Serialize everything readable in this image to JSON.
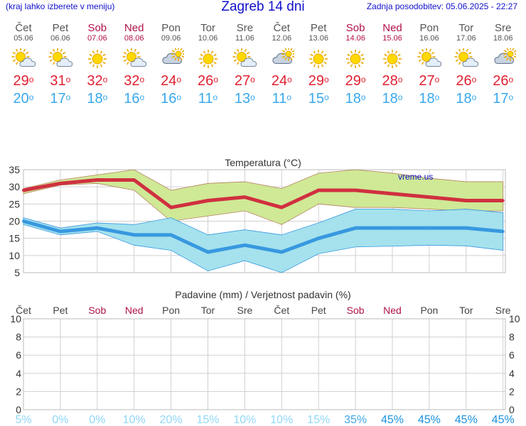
{
  "header": {
    "menu_hint": "(kraj lahko izberete v meniju)",
    "title": "Zagreb 14 dni",
    "updated": "Zadnja posodobitev: 05.06.2025 - 22:27"
  },
  "days": [
    {
      "name": "Čet",
      "date": "05.06",
      "weekend": false,
      "icon": "sun-cloud-icon",
      "tmax": "29",
      "tmin": "20"
    },
    {
      "name": "Pet",
      "date": "06.06",
      "weekend": false,
      "icon": "sun-cloud-icon",
      "tmax": "31",
      "tmin": "17"
    },
    {
      "name": "Sob",
      "date": "07.06",
      "weekend": true,
      "icon": "sun-icon",
      "tmax": "32",
      "tmin": "18"
    },
    {
      "name": "Ned",
      "date": "08.06",
      "weekend": true,
      "icon": "sun-cloud-icon",
      "tmax": "32",
      "tmin": "16"
    },
    {
      "name": "Pon",
      "date": "09.06",
      "weekend": false,
      "icon": "cloud-sun-icon",
      "tmax": "24",
      "tmin": "16"
    },
    {
      "name": "Tor",
      "date": "10.06",
      "weekend": false,
      "icon": "sun-icon",
      "tmax": "26",
      "tmin": "11"
    },
    {
      "name": "Sre",
      "date": "11.06",
      "weekend": false,
      "icon": "sun-cloud-icon",
      "tmax": "27",
      "tmin": "13"
    },
    {
      "name": "Čet",
      "date": "12.06",
      "weekend": false,
      "icon": "cloud-sun-icon",
      "tmax": "24",
      "tmin": "11"
    },
    {
      "name": "Pet",
      "date": "13.06",
      "weekend": false,
      "icon": "sun-icon",
      "tmax": "29",
      "tmin": "15"
    },
    {
      "name": "Sob",
      "date": "14.06",
      "weekend": true,
      "icon": "sun-icon",
      "tmax": "29",
      "tmin": "18"
    },
    {
      "name": "Ned",
      "date": "15.06",
      "weekend": true,
      "icon": "sun-icon",
      "tmax": "28",
      "tmin": "18"
    },
    {
      "name": "Pon",
      "date": "16.06",
      "weekend": false,
      "icon": "sun-cloud-icon",
      "tmax": "27",
      "tmin": "18"
    },
    {
      "name": "Tor",
      "date": "17.06",
      "weekend": false,
      "icon": "sun-cloud-icon",
      "tmax": "26",
      "tmin": "18"
    },
    {
      "name": "Sre",
      "date": "18.06",
      "weekend": false,
      "icon": "cloud-sun-icon",
      "tmax": "26",
      "tmin": "17"
    }
  ],
  "chart_data": [
    {
      "type": "line",
      "title": "Temperatura (°C)",
      "watermark": "vreme.us",
      "x": [
        "Čet",
        "Pet",
        "Sob",
        "Ned",
        "Pon",
        "Tor",
        "Sre",
        "Čet",
        "Pet",
        "Sob",
        "Ned",
        "Pon",
        "Tor",
        "Sre"
      ],
      "ylim": [
        5,
        35
      ],
      "yticks": [
        5,
        10,
        15,
        20,
        25,
        30,
        35
      ],
      "grid": true,
      "series": [
        {
          "role": "max",
          "values": [
            29,
            31,
            32,
            32,
            24,
            26,
            27,
            24,
            29,
            29,
            28,
            27,
            26,
            26
          ],
          "color": "#d03040"
        },
        {
          "role": "min",
          "values": [
            20,
            17,
            18,
            16,
            16,
            11,
            13,
            11,
            15,
            18,
            18,
            18,
            18,
            17
          ],
          "color": "#3898e0"
        }
      ],
      "bands": [
        {
          "role": "max-range",
          "upper": [
            29.5,
            32,
            33.5,
            35,
            29,
            31,
            31.5,
            29.5,
            34,
            35,
            34,
            32.5,
            31.5,
            31.5
          ],
          "lower": [
            28,
            30.5,
            31,
            29,
            20,
            21.5,
            23,
            19,
            25,
            24,
            24,
            23.5,
            23,
            23
          ],
          "color": "#cce890"
        },
        {
          "role": "min-range",
          "upper": [
            21,
            18,
            19.5,
            19,
            21,
            16,
            17.5,
            16,
            19.5,
            23.5,
            23.5,
            23,
            23.5,
            22.5
          ],
          "lower": [
            19,
            16,
            17,
            13,
            11.5,
            5.5,
            8.5,
            5,
            10.5,
            12.5,
            12.7,
            13,
            12.8,
            11.5
          ],
          "color": "#a0e0ec"
        }
      ]
    },
    {
      "type": "bar",
      "title": "Padavine (mm) / Verjetnost padavin (%)",
      "categories": [
        "Čet",
        "Pet",
        "Sob",
        "Ned",
        "Pon",
        "Tor",
        "Sre",
        "Čet",
        "Pet",
        "Sob",
        "Ned",
        "Pon",
        "Tor",
        "Sre"
      ],
      "values": [
        0,
        0,
        0,
        0,
        0,
        0,
        0,
        0,
        0,
        0,
        0,
        0,
        0,
        0
      ],
      "ylim": [
        0,
        10
      ],
      "yticks": [
        0,
        2,
        4,
        6,
        8,
        10
      ],
      "grid": true,
      "probability": [
        "5%",
        "0%",
        "0%",
        "10%",
        "20%",
        "15%",
        "10%",
        "10%",
        "15%",
        "35%",
        "45%",
        "45%",
        "45%",
        "45%"
      ]
    }
  ]
}
